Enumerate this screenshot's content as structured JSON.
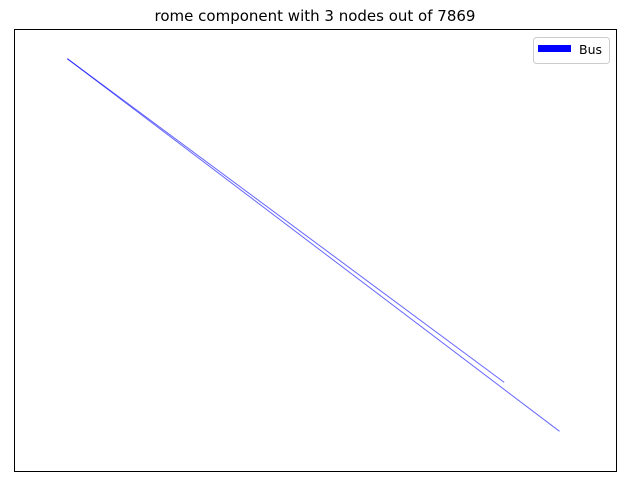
{
  "chart_data": {
    "type": "line",
    "title": "rome component with 3 nodes out of 7869",
    "xlabel": "",
    "ylabel": "",
    "grid": false,
    "axes_ticks": false,
    "legend": {
      "placement": "top-right",
      "entries": [
        {
          "name": "Bus",
          "color": "#0000ff"
        }
      ]
    },
    "xlim": [
      0,
      1
    ],
    "ylim": [
      0,
      1
    ],
    "series": [
      {
        "name": "Bus",
        "color": "#0000ff",
        "opacity": 0.6,
        "edges": [
          {
            "x": [
              0.087,
              0.814
            ],
            "y": [
              0.935,
              0.201
            ]
          },
          {
            "x": [
              0.087,
              0.906
            ],
            "y": [
              0.935,
              0.09
            ]
          }
        ]
      }
    ]
  }
}
